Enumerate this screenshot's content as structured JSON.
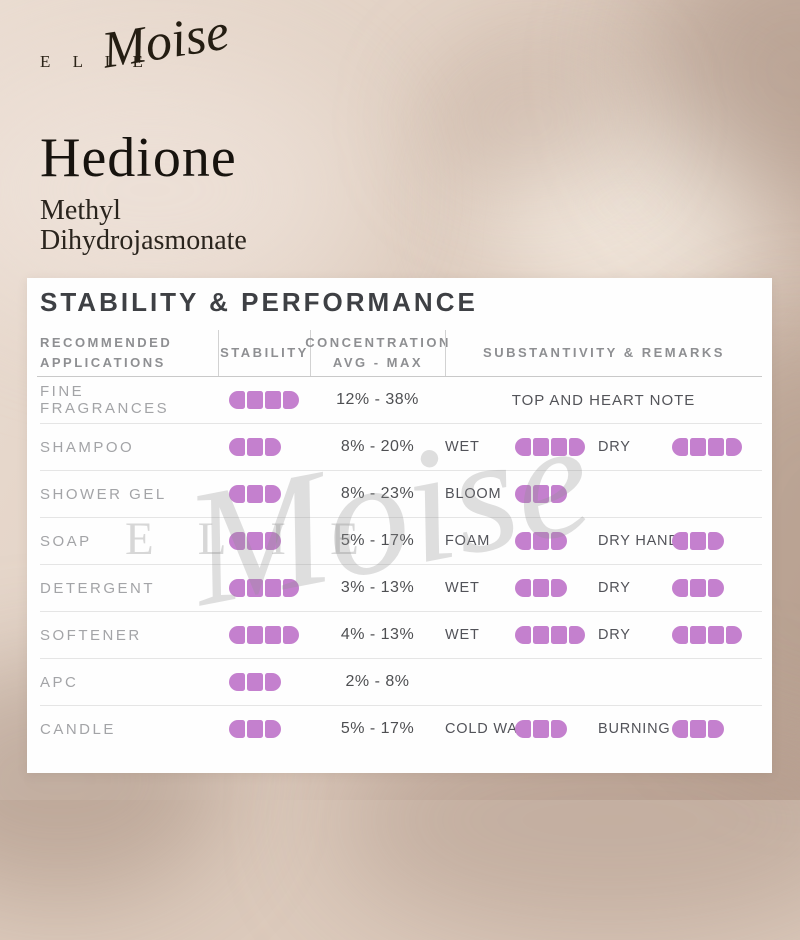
{
  "brand": {
    "name": "E L I E",
    "script": "Moise"
  },
  "product": {
    "title": "Hedione",
    "subtitle_line1": "Methyl",
    "subtitle_line2": "Dihydrojasmonate"
  },
  "card": {
    "title": "STABILITY & PERFORMANCE",
    "columns": [
      {
        "line1": "RECOMMENDED",
        "line2": "APPLICATIONS"
      },
      {
        "line1": "STABILITY",
        "line2": ""
      },
      {
        "line1": "CONCENTRATION",
        "line2": "AVG - MAX"
      },
      {
        "line1": "SUBSTANTIVITY & REMARKS",
        "line2": ""
      }
    ]
  },
  "table": {
    "rating_max": 4,
    "rows": [
      {
        "application": "FINE FRAGRANCES",
        "stability": 4,
        "concentration": "12% - 38%",
        "remark_text": "TOP AND HEART NOTE",
        "remarks": []
      },
      {
        "application": "SHAMPOO",
        "stability": 3,
        "concentration": "8% - 20%",
        "remark_text": "",
        "remarks": [
          {
            "label": "WET",
            "rating": 4
          },
          {
            "label": "DRY",
            "rating": 4
          }
        ]
      },
      {
        "application": "SHOWER GEL",
        "stability": 3,
        "concentration": "8% - 23%",
        "remark_text": "",
        "remarks": [
          {
            "label": "BLOOM",
            "rating": 3
          }
        ]
      },
      {
        "application": "SOAP",
        "stability": 3,
        "concentration": "5% - 17%",
        "remark_text": "",
        "remarks": [
          {
            "label": "FOAM",
            "rating": 3
          },
          {
            "label": "DRY HAND",
            "rating": 3
          }
        ]
      },
      {
        "application": "DETERGENT",
        "stability": 4,
        "concentration": "3% - 13%",
        "remark_text": "",
        "remarks": [
          {
            "label": "WET",
            "rating": 3
          },
          {
            "label": "DRY",
            "rating": 3
          }
        ]
      },
      {
        "application": "SOFTENER",
        "stability": 4,
        "concentration": "4% - 13%",
        "remark_text": "",
        "remarks": [
          {
            "label": "WET",
            "rating": 4
          },
          {
            "label": "DRY",
            "rating": 4
          }
        ]
      },
      {
        "application": "APC",
        "stability": 3,
        "concentration": "2% - 8%",
        "remark_text": "",
        "remarks": []
      },
      {
        "application": "CANDLE",
        "stability": 3,
        "concentration": "5% - 17%",
        "remark_text": "",
        "remarks": [
          {
            "label": "COLD WAX",
            "rating": 3
          },
          {
            "label": "BURNING",
            "rating": 3
          }
        ]
      }
    ]
  },
  "watermark": {
    "caps": "ELIE",
    "script": "Moise"
  },
  "colors": {
    "pill": "#c480ce",
    "card_bg": "#fefefe",
    "backdrop": "#e2d2c5",
    "title_text": "#17130e",
    "table_heading": "#3e4044"
  }
}
